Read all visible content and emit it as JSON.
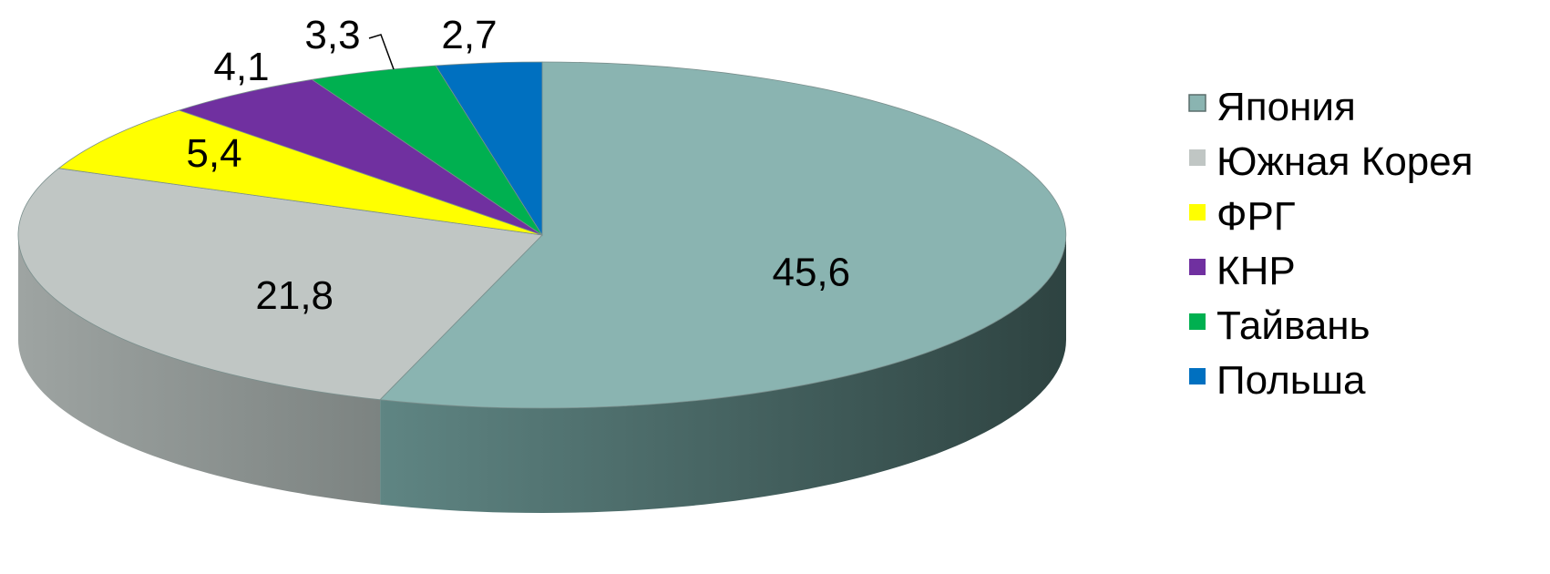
{
  "chart_data": {
    "type": "pie",
    "title": "",
    "legend_position": "right",
    "categories": [
      "Япония",
      "Южная Корея",
      "ФРГ",
      "КНР",
      "Тайвань",
      "Польша"
    ],
    "values": [
      45.6,
      21.8,
      5.4,
      4.1,
      3.3,
      2.7
    ],
    "value_labels": [
      "45,6",
      "21,8",
      "5,4",
      "4,1",
      "3,3",
      "2,7"
    ],
    "colors": [
      "#8AB4B1",
      "#C0C6C4",
      "#FFFF00",
      "#7030A0",
      "#00B050",
      "#0070C0"
    ],
    "style": "3d"
  }
}
